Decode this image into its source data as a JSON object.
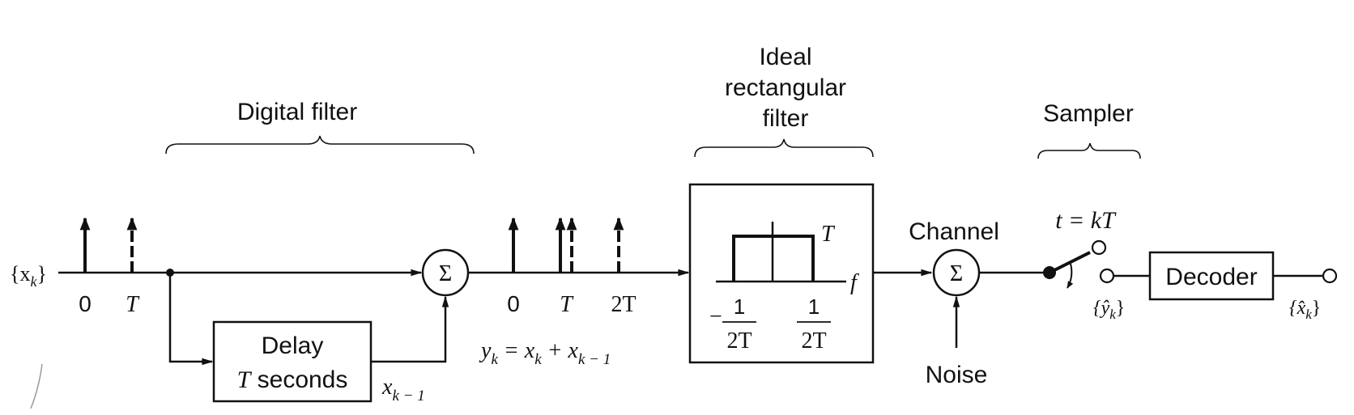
{
  "labels": {
    "digital_filter": "Digital filter",
    "ideal_filter_line1": "Ideal",
    "ideal_filter_line2": "rectangular",
    "ideal_filter_line3": "filter",
    "sampler": "Sampler",
    "channel": "Channel",
    "noise": "Noise",
    "sample_time": "t = kT",
    "input_seq": "{x",
    "input_sub": "k",
    "input_close": "}",
    "tick_zero": "0",
    "tick_t": "T",
    "out_tick_zero": "0",
    "out_tick_t": "T",
    "out_tick_2t": "2T",
    "delay_line1": "Delay",
    "delay_t": "T",
    "delay_seconds": " seconds",
    "delayed_x": "x",
    "delayed_sub": "k − 1",
    "yk_equation": "y",
    "yk_eq_sub1": "k",
    "yk_eq_mid": " = x",
    "yk_eq_sub2": "k",
    "yk_eq_plus": " + x",
    "yk_eq_sub3": "k − 1",
    "filter_gain": "T",
    "filter_axis": "f",
    "filter_neg": "−",
    "filter_num": "1",
    "filter_den": "2T",
    "filter_num2": "1",
    "filter_den2": "2T",
    "sum_symbol": "Σ",
    "sum_symbol2": "Σ",
    "decoder": "Decoder",
    "yhat_seq": "{ŷ",
    "yhat_sub": "k",
    "yhat_close": "}",
    "xhat_seq": "{x̂",
    "xhat_sub": "k",
    "xhat_close": "}"
  }
}
